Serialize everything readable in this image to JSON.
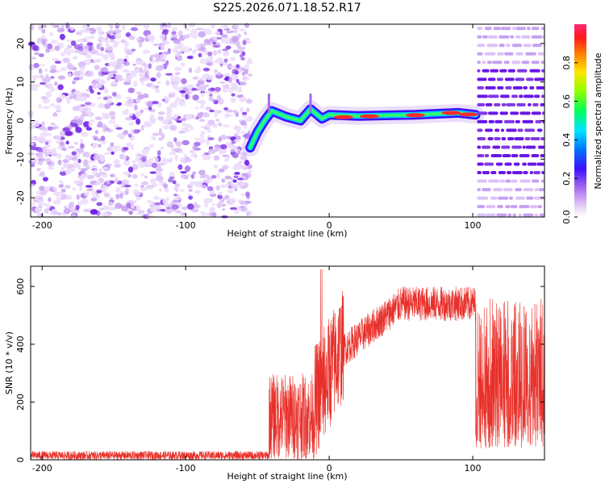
{
  "chart_data": [
    {
      "type": "heatmap",
      "title": "S225.2026.071.18.52.R17",
      "xlabel": "Height of straight line (km)",
      "ylabel": "Frequency (Hz)",
      "xlim": [
        -208,
        150
      ],
      "ylim": [
        -25,
        25
      ],
      "xticks": [
        -200,
        -100,
        0,
        100
      ],
      "yticks": [
        -20,
        -10,
        0,
        10,
        20
      ],
      "colorbar": {
        "label": "Normalized spectral amplitude",
        "range": [
          0,
          1
        ],
        "ticks": [
          0.0,
          0.2,
          0.4,
          0.6,
          0.8
        ]
      },
      "regions": [
        {
          "name": "noise",
          "x_range": [
            -208,
            -55
          ],
          "f_range": [
            -25,
            25
          ],
          "amplitude": 0.1
        },
        {
          "name": "carrier",
          "x_range": [
            -55,
            102
          ],
          "track": [
            {
              "x": -55,
              "f": -7
            },
            {
              "x": -50,
              "f": -3
            },
            {
              "x": -45,
              "f": 0
            },
            {
              "x": -40,
              "f": 2.5
            },
            {
              "x": -30,
              "f": 1
            },
            {
              "x": -20,
              "f": 0
            },
            {
              "x": -13,
              "f": 3
            },
            {
              "x": -5,
              "f": 0.5
            },
            {
              "x": 0,
              "f": 1.5
            },
            {
              "x": 20,
              "f": 1.2
            },
            {
              "x": 60,
              "f": 1.5
            },
            {
              "x": 90,
              "f": 2
            },
            {
              "x": 102,
              "f": 1.5
            }
          ]
        },
        {
          "name": "comb",
          "x_range": [
            103,
            150
          ],
          "spacing_hz": 2.2
        }
      ]
    },
    {
      "type": "line",
      "xlabel": "Height of straight line (km)",
      "ylabel": "SNR (10 * v/v)",
      "xlim": [
        -208,
        150
      ],
      "ylim": [
        0,
        670
      ],
      "xticks": [
        -200,
        -100,
        0,
        100
      ],
      "yticks": [
        0,
        200,
        400,
        600
      ],
      "series": [
        {
          "name": "SNR",
          "color": "#e8302a",
          "segments": [
            {
              "x_range": [
                -208,
                -42
              ],
              "base": 15,
              "noise": 15
            },
            {
              "x_range": [
                -42,
                -10
              ],
              "base": 150,
              "noise": 150
            },
            {
              "x_range": [
                -10,
                10
              ],
              "base": 350,
              "noise": 200
            },
            {
              "x_range": [
                10,
                102
              ],
              "base": 520,
              "noise": 60
            },
            {
              "x_range": [
                102,
                150
              ],
              "base": 300,
              "noise": 280
            }
          ]
        }
      ]
    }
  ]
}
